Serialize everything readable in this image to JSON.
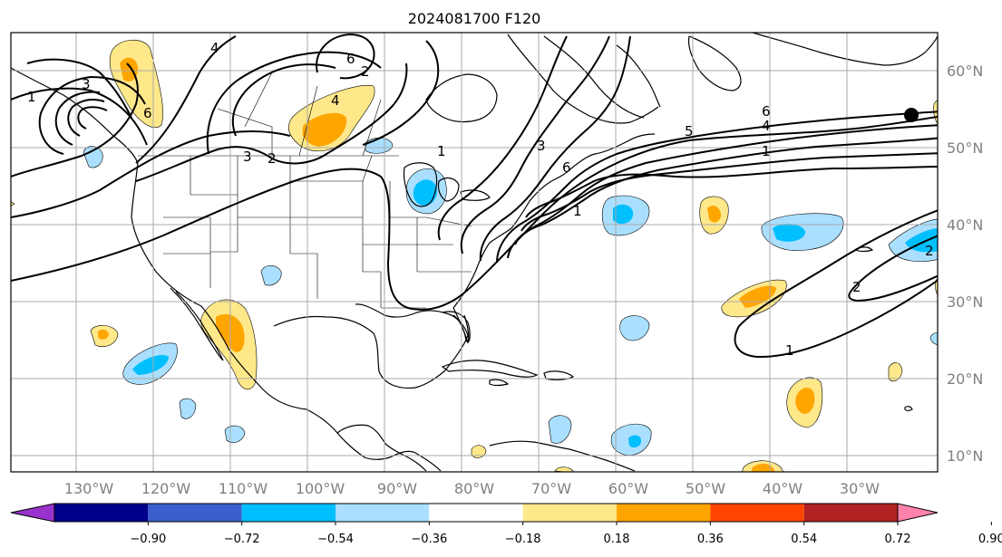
{
  "title": "2024081700 F120",
  "map": {
    "lon_labels": [
      "130°W",
      "120°W",
      "110°W",
      "100°W",
      "90°W",
      "80°W",
      "70°W",
      "60°W",
      "50°W",
      "40°W",
      "30°W"
    ],
    "lat_labels": [
      "60°N",
      "50°N",
      "40°N",
      "30°N",
      "20°N",
      "10°N"
    ],
    "contour_labels": [
      "1",
      "2",
      "3",
      "4",
      "5",
      "6"
    ],
    "station_marker": "filled-circle"
  },
  "colorbar": {
    "tick_labels": [
      "−0.90",
      "−0.72",
      "−0.54",
      "−0.36",
      "−0.18",
      "0.18",
      "0.36",
      "0.54",
      "0.72",
      "0.90"
    ],
    "colors": [
      "#9932cc",
      "#00008b",
      "#3a5fcd",
      "#00bfff",
      "#aadfff",
      "#ffffff",
      "#ffe88a",
      "#ffa500",
      "#ff4500",
      "#b22222",
      "#ff82ab"
    ]
  },
  "shading_colors": {
    "neg_light": "#aadfff",
    "neg_mid": "#00bfff",
    "pos_light": "#ffe88a",
    "pos_mid": "#ffa500"
  }
}
